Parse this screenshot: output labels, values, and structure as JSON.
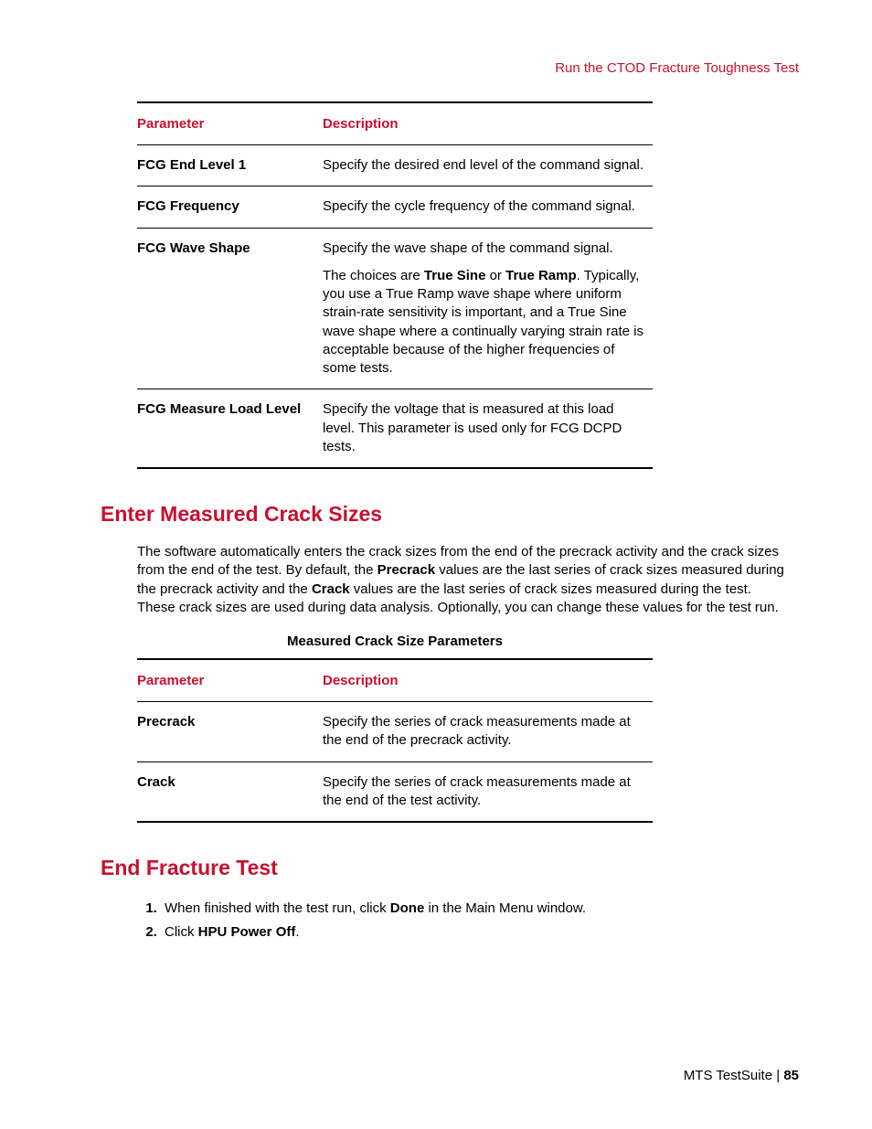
{
  "running_head": "Run the CTOD Fracture Toughness Test",
  "table1": {
    "headers": {
      "param": "Parameter",
      "desc": "Description"
    },
    "rows": [
      {
        "param": "FCG End Level 1",
        "desc": [
          [
            {
              "t": "Specify the desired end level of the command signal."
            }
          ]
        ]
      },
      {
        "param": "FCG Frequency",
        "desc": [
          [
            {
              "t": "Specify the cycle frequency of the command signal."
            }
          ]
        ]
      },
      {
        "param": "FCG Wave Shape",
        "desc": [
          [
            {
              "t": "Specify the wave shape of the command signal."
            }
          ],
          [
            {
              "t": "The choices are "
            },
            {
              "t": "True Sine",
              "b": true
            },
            {
              "t": " or "
            },
            {
              "t": "True Ramp",
              "b": true
            },
            {
              "t": ". Typically, you use a True Ramp wave shape where uniform strain-rate sensitivity is important, and a True Sine wave shape where a continually varying strain rate is acceptable because of the higher frequencies of some tests."
            }
          ]
        ]
      },
      {
        "param": "FCG Measure Load Level",
        "desc": [
          [
            {
              "t": "Specify the voltage that is measured at this load level. This parameter is used only for FCG DCPD tests."
            }
          ]
        ]
      }
    ]
  },
  "section2": {
    "heading": "Enter Measured Crack Sizes",
    "body": [
      {
        "t": "The software automatically enters the crack sizes from the end of the precrack activity and the crack sizes from the end of the test. By default, the "
      },
      {
        "t": "Precrack",
        "b": true
      },
      {
        "t": " values are the last series of crack sizes measured during the precrack activity and the "
      },
      {
        "t": "Crack",
        "b": true
      },
      {
        "t": " values are the last series of crack sizes measured during the test. These crack sizes are used during data analysis. Optionally, you can change these values for the test run."
      }
    ],
    "caption": "Measured Crack Size Parameters"
  },
  "table2": {
    "headers": {
      "param": "Parameter",
      "desc": "Description"
    },
    "rows": [
      {
        "param": "Precrack",
        "desc": [
          [
            {
              "t": "Specify the series of crack measurements made at the end of the precrack activity."
            }
          ]
        ]
      },
      {
        "param": "Crack",
        "desc": [
          [
            {
              "t": "Specify the series of crack measurements made at the end of the test activity."
            }
          ]
        ]
      }
    ]
  },
  "section3": {
    "heading": "End Fracture Test",
    "steps": [
      [
        {
          "t": "When finished with the test run, click "
        },
        {
          "t": "Done",
          "b": true
        },
        {
          "t": " in the Main Menu window."
        }
      ],
      [
        {
          "t": "Click "
        },
        {
          "t": "HPU Power Off",
          "b": true
        },
        {
          "t": "."
        }
      ]
    ]
  },
  "footer": {
    "product": "MTS TestSuite",
    "sep": " | ",
    "page": "85"
  }
}
